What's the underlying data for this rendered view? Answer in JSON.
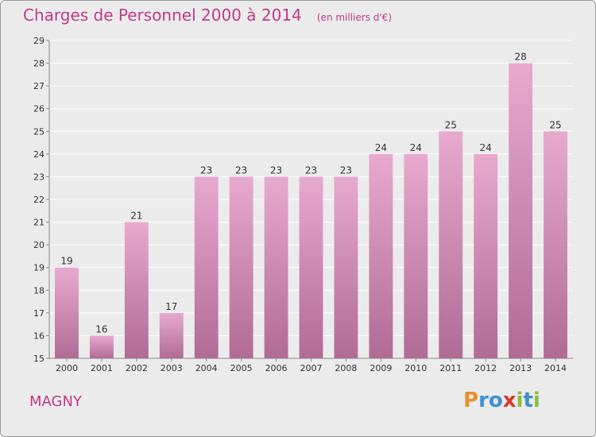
{
  "header": {
    "title": "Charges de Personnel 2000 à 2014",
    "subtitle": "(en milliers d'€)"
  },
  "footer": {
    "commune": "MAGNY",
    "logo_text": "Proxiti",
    "logo_letters": [
      {
        "ch": "P",
        "color": "#e8912c"
      },
      {
        "ch": "r",
        "color": "#3d8fd8"
      },
      {
        "ch": "o",
        "color": "#3d8fd8"
      },
      {
        "ch": "x",
        "color": "#d63a2f"
      },
      {
        "ch": "i",
        "color": "#8bbf3c"
      },
      {
        "ch": "t",
        "color": "#3d8fd8"
      },
      {
        "ch": "i",
        "color": "#8bbf3c"
      }
    ]
  },
  "colors": {
    "accent": "#c0398a",
    "bar_top": "#e8a9cf",
    "bar_bottom": "#b06b95",
    "grid": "#ffffff",
    "background": "#ebebeb"
  },
  "chart_data": {
    "type": "bar",
    "title": "Charges de Personnel 2000 à 2014",
    "subtitle": "(en milliers d'€)",
    "categories": [
      "2000",
      "2001",
      "2002",
      "2003",
      "2004",
      "2005",
      "2006",
      "2007",
      "2008",
      "2009",
      "2010",
      "2011",
      "2012",
      "2013",
      "2014"
    ],
    "values": [
      19,
      16,
      21,
      17,
      23,
      23,
      23,
      23,
      23,
      24,
      24,
      25,
      24,
      28,
      25
    ],
    "ylim": [
      15,
      29
    ],
    "yticks": [
      15,
      16,
      17,
      18,
      19,
      20,
      21,
      22,
      23,
      24,
      25,
      26,
      27,
      28,
      29
    ],
    "xlabel": "",
    "ylabel": "",
    "grid": true,
    "data_labels": true
  }
}
